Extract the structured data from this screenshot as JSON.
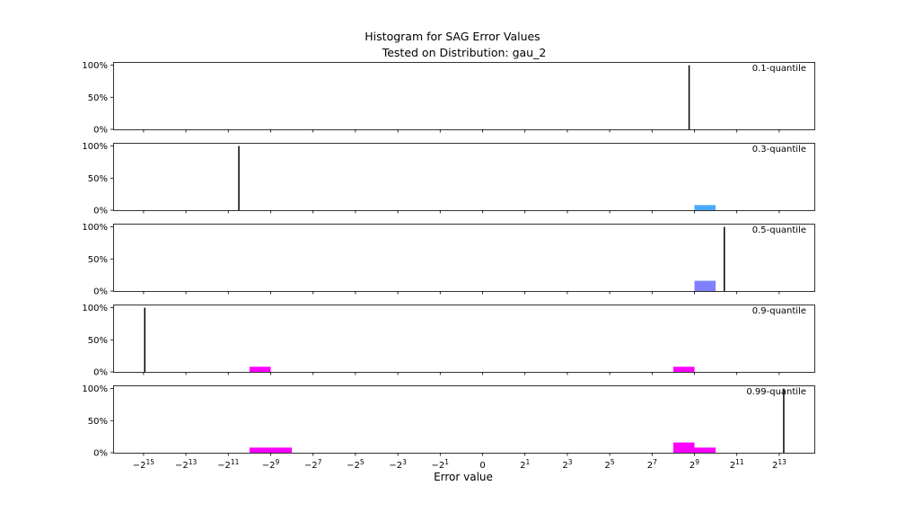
{
  "chart_data": {
    "type": "bar",
    "title": "Histogram for SAG Error Values",
    "subtitle": "Tested on Distribution: gau_2",
    "xlabel": "Error value",
    "ylabel": "",
    "x_scale": "symlog (base 2)",
    "x_ticks": [
      {
        "value": -32768,
        "base": "−2",
        "exp": "15"
      },
      {
        "value": -8192,
        "base": "−2",
        "exp": "13"
      },
      {
        "value": -2048,
        "base": "−2",
        "exp": "11"
      },
      {
        "value": -512,
        "base": "−2",
        "exp": "9"
      },
      {
        "value": -128,
        "base": "−2",
        "exp": "7"
      },
      {
        "value": -32,
        "base": "−2",
        "exp": "5"
      },
      {
        "value": -8,
        "base": "−2",
        "exp": "3"
      },
      {
        "value": -2,
        "base": "−2",
        "exp": "1"
      },
      {
        "value": 0,
        "base": "0",
        "exp": ""
      },
      {
        "value": 2,
        "base": "2",
        "exp": "1"
      },
      {
        "value": 8,
        "base": "2",
        "exp": "3"
      },
      {
        "value": 32,
        "base": "2",
        "exp": "5"
      },
      {
        "value": 128,
        "base": "2",
        "exp": "7"
      },
      {
        "value": 512,
        "base": "2",
        "exp": "9"
      },
      {
        "value": 2048,
        "base": "2",
        "exp": "11"
      },
      {
        "value": 8192,
        "base": "2",
        "exp": "13"
      }
    ],
    "y_ticks": [
      "0%",
      "50%",
      "100%"
    ],
    "ylim": [
      0,
      1.05
    ],
    "grid": false,
    "panels": [
      {
        "label": "0.1-quantile",
        "bars": [],
        "marker_x": 430
      },
      {
        "label": "0.3-quantile",
        "bars": [
          {
            "x0": 512,
            "x1": 1024,
            "value": 0.08,
            "color": "#4aaaff"
          }
        ],
        "marker_x": -1450
      },
      {
        "label": "0.5-quantile",
        "bars": [
          {
            "x0": 512,
            "x1": 1024,
            "value": 0.16,
            "color": "#8080ff"
          }
        ],
        "marker_x": 1360
      },
      {
        "label": "0.9-quantile",
        "bars": [
          {
            "x0": -1024,
            "x1": -512,
            "value": 0.08,
            "color": "#ff00ff"
          },
          {
            "x0": 256,
            "x1": 512,
            "value": 0.08,
            "color": "#ff00ff"
          }
        ],
        "marker_x": -31500
      },
      {
        "label": "0.99-quantile",
        "bars": [
          {
            "x0": -1024,
            "x1": -256,
            "value": 0.08,
            "color": "#ff00ff"
          },
          {
            "x0": 256,
            "x1": 512,
            "value": 0.16,
            "color": "#ff00ff"
          },
          {
            "x0": 512,
            "x1": 1024,
            "value": 0.08,
            "color": "#ff00ff"
          }
        ],
        "marker_x": 9500
      }
    ]
  }
}
